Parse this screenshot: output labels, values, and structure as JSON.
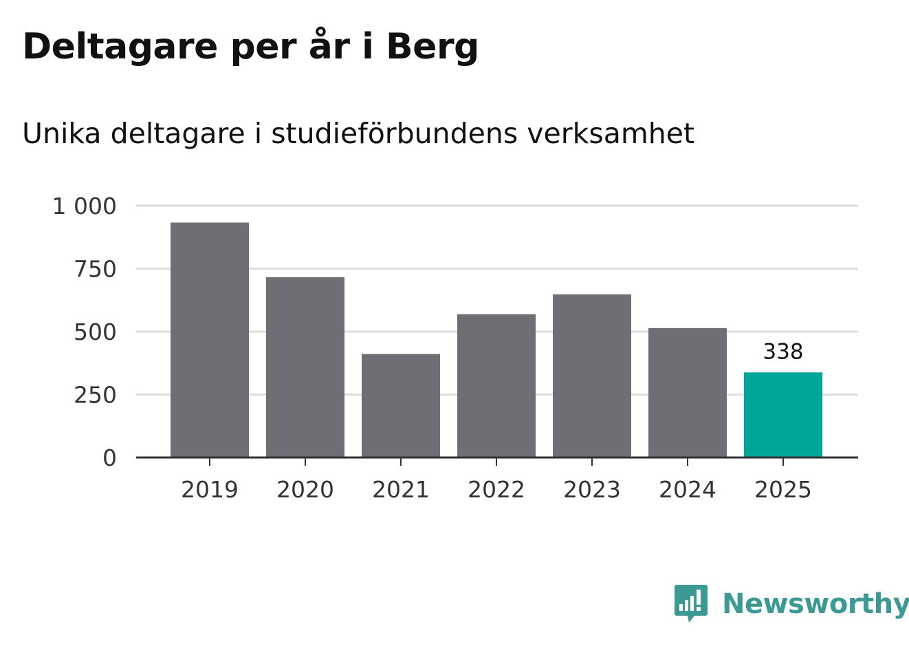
{
  "header": {
    "title": "Deltagare per år i Berg",
    "subtitle": "Unika deltagare i studieförbundens verksamhet"
  },
  "brand": {
    "name": "Newsworthy",
    "color": "#3c9a94"
  },
  "colors": {
    "bar": "#6f6e74",
    "highlight": "#00a69a",
    "grid": "#dddddd",
    "axis": "#333333"
  },
  "chart_data": {
    "type": "bar",
    "title": "Deltagare per år i Berg",
    "subtitle": "Unika deltagare i studieförbundens verksamhet",
    "categories": [
      "2019",
      "2020",
      "2021",
      "2022",
      "2023",
      "2024",
      "2025"
    ],
    "values": [
      933,
      716,
      411,
      569,
      648,
      514,
      338
    ],
    "highlight_index": 6,
    "data_labels": [
      {
        "index": 6,
        "text": "338"
      }
    ],
    "ylim": [
      0,
      1000
    ],
    "yticks": [
      0,
      250,
      500,
      750,
      1000
    ],
    "ytick_labels": [
      "0",
      "250",
      "500",
      "750",
      "1 000"
    ],
    "grid": true,
    "xlabel": "",
    "ylabel": ""
  }
}
